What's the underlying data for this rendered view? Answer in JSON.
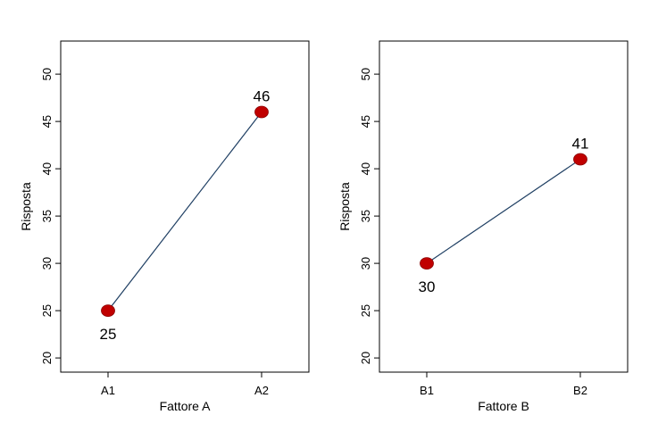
{
  "chart_data": [
    {
      "type": "line",
      "categories": [
        "A1",
        "A2"
      ],
      "values": [
        25,
        46
      ],
      "data_labels": [
        "25",
        "46"
      ],
      "xlabel": "Fattore A",
      "ylabel": "Risposta",
      "ylim": [
        18.5,
        53.5
      ],
      "yticks": [
        20,
        25,
        30,
        35,
        40,
        45,
        50
      ],
      "grid": false,
      "line_color": "#1f3f63",
      "marker_color": "#c00000"
    },
    {
      "type": "line",
      "categories": [
        "B1",
        "B2"
      ],
      "values": [
        30,
        41
      ],
      "data_labels": [
        "30",
        "41"
      ],
      "xlabel": "Fattore B",
      "ylabel": "Risposta",
      "ylim": [
        18.5,
        53.5
      ],
      "yticks": [
        20,
        25,
        30,
        35,
        40,
        45,
        50
      ],
      "grid": false,
      "line_color": "#1f3f63",
      "marker_color": "#c00000"
    }
  ]
}
